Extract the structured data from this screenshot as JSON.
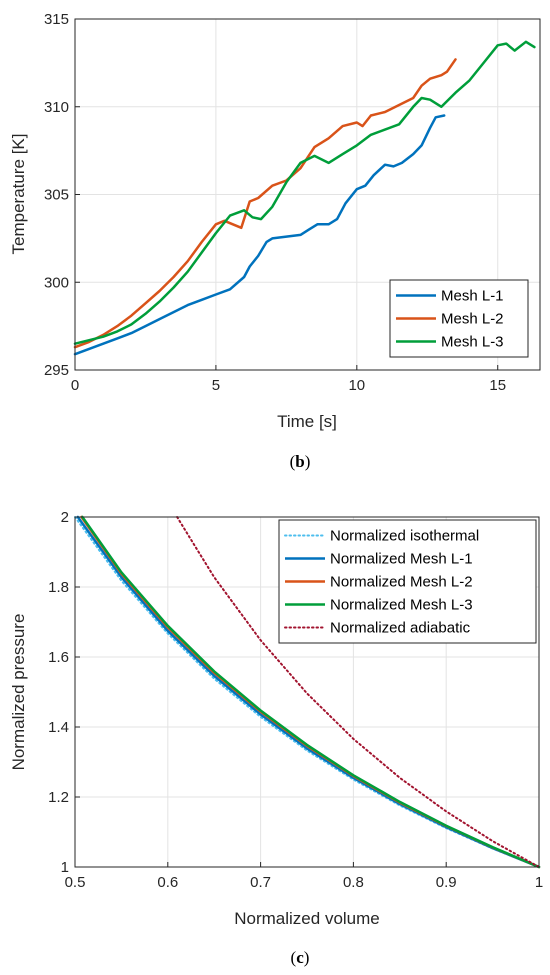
{
  "chart_data": [
    {
      "type": "line",
      "caption_letter": "b",
      "xlabel": "Time [s]",
      "ylabel": "Temperature [K]",
      "xlim": [
        0,
        16.5
      ],
      "ylim": [
        295,
        315
      ],
      "xticks": [
        0,
        5,
        10,
        15
      ],
      "yticks": [
        295,
        300,
        305,
        310,
        315
      ],
      "grid": true,
      "legend_position": "bottom-right",
      "series": [
        {
          "name": "Mesh L-1",
          "color": "#0072BD",
          "style": "solid",
          "points": [
            [
              0,
              295.9
            ],
            [
              0.5,
              296.2
            ],
            [
              1,
              296.5
            ],
            [
              1.5,
              296.8
            ],
            [
              2,
              297.1
            ],
            [
              2.5,
              297.5
            ],
            [
              3,
              297.9
            ],
            [
              3.5,
              298.3
            ],
            [
              4,
              298.7
            ],
            [
              4.5,
              299.0
            ],
            [
              5,
              299.3
            ],
            [
              5.5,
              299.6
            ],
            [
              6,
              300.3
            ],
            [
              6.2,
              300.9
            ],
            [
              6.5,
              301.5
            ],
            [
              6.8,
              302.3
            ],
            [
              7,
              302.5
            ],
            [
              7.5,
              302.6
            ],
            [
              8,
              302.7
            ],
            [
              8.3,
              303.0
            ],
            [
              8.6,
              303.3
            ],
            [
              9,
              303.3
            ],
            [
              9.3,
              303.6
            ],
            [
              9.6,
              304.5
            ],
            [
              10,
              305.3
            ],
            [
              10.3,
              305.5
            ],
            [
              10.6,
              306.1
            ],
            [
              11,
              306.7
            ],
            [
              11.3,
              306.6
            ],
            [
              11.6,
              306.8
            ],
            [
              12,
              307.3
            ],
            [
              12.3,
              307.8
            ],
            [
              12.6,
              308.8
            ],
            [
              12.8,
              309.4
            ],
            [
              13.1,
              309.5
            ]
          ]
        },
        {
          "name": "Mesh L-2",
          "color": "#D95319",
          "style": "solid",
          "points": [
            [
              0,
              296.3
            ],
            [
              0.5,
              296.6
            ],
            [
              1,
              297.0
            ],
            [
              1.5,
              297.5
            ],
            [
              2,
              298.1
            ],
            [
              2.5,
              298.8
            ],
            [
              3,
              299.5
            ],
            [
              3.5,
              300.3
            ],
            [
              4,
              301.2
            ],
            [
              4.5,
              302.3
            ],
            [
              5,
              303.3
            ],
            [
              5.3,
              303.5
            ],
            [
              5.6,
              303.3
            ],
            [
              5.9,
              303.1
            ],
            [
              6.2,
              304.6
            ],
            [
              6.5,
              304.8
            ],
            [
              7,
              305.5
            ],
            [
              7.5,
              305.8
            ],
            [
              8,
              306.5
            ],
            [
              8.5,
              307.7
            ],
            [
              9,
              308.2
            ],
            [
              9.5,
              308.9
            ],
            [
              10,
              309.1
            ],
            [
              10.2,
              308.9
            ],
            [
              10.5,
              309.5
            ],
            [
              11,
              309.7
            ],
            [
              11.5,
              310.1
            ],
            [
              12,
              310.5
            ],
            [
              12.3,
              311.2
            ],
            [
              12.6,
              311.6
            ],
            [
              13,
              311.8
            ],
            [
              13.2,
              312.0
            ],
            [
              13.5,
              312.7
            ]
          ]
        },
        {
          "name": "Mesh L-3",
          "color": "#009E3A",
          "style": "solid",
          "points": [
            [
              0,
              296.5
            ],
            [
              0.5,
              296.7
            ],
            [
              1,
              296.9
            ],
            [
              1.5,
              297.2
            ],
            [
              2,
              297.6
            ],
            [
              2.5,
              298.2
            ],
            [
              3,
              298.9
            ],
            [
              3.5,
              299.7
            ],
            [
              4,
              300.6
            ],
            [
              4.5,
              301.7
            ],
            [
              5,
              302.8
            ],
            [
              5.5,
              303.8
            ],
            [
              6,
              304.1
            ],
            [
              6.3,
              303.7
            ],
            [
              6.6,
              303.6
            ],
            [
              7,
              304.3
            ],
            [
              7.5,
              305.7
            ],
            [
              8,
              306.8
            ],
            [
              8.5,
              307.2
            ],
            [
              9,
              306.8
            ],
            [
              9.5,
              307.3
            ],
            [
              10,
              307.8
            ],
            [
              10.5,
              308.4
            ],
            [
              11,
              308.7
            ],
            [
              11.5,
              309.0
            ],
            [
              12,
              310.0
            ],
            [
              12.3,
              310.5
            ],
            [
              12.6,
              310.4
            ],
            [
              13,
              310.0
            ],
            [
              13.5,
              310.8
            ],
            [
              14,
              311.5
            ],
            [
              14.5,
              312.5
            ],
            [
              15,
              313.5
            ],
            [
              15.3,
              313.6
            ],
            [
              15.6,
              313.2
            ],
            [
              16,
              313.7
            ],
            [
              16.3,
              313.4
            ]
          ]
        }
      ]
    },
    {
      "type": "line",
      "caption_letter": "c",
      "xlabel": "Normalized volume",
      "ylabel": "Normalized pressure",
      "xlim": [
        0.5,
        1
      ],
      "ylim": [
        1,
        2
      ],
      "xticks": [
        0.5,
        0.6,
        0.7,
        0.8,
        0.9,
        1
      ],
      "xtick_labels": [
        "0.5",
        "0.6",
        "0.7",
        "0.8",
        "0.9",
        "1"
      ],
      "yticks": [
        1,
        1.2,
        1.4,
        1.6,
        1.8,
        2
      ],
      "ytick_labels": [
        "1",
        "1.2",
        "1.4",
        "1.6",
        "1.8",
        "2"
      ],
      "grid": true,
      "legend_position": "top-right",
      "series": [
        {
          "name": "Normalized isothermal",
          "color": "#4DBEEE",
          "style": "dotted",
          "points": [
            [
              0.5,
              2.0
            ],
            [
              0.55,
              1.818
            ],
            [
              0.6,
              1.667
            ],
            [
              0.65,
              1.538
            ],
            [
              0.7,
              1.429
            ],
            [
              0.75,
              1.333
            ],
            [
              0.8,
              1.25
            ],
            [
              0.85,
              1.176
            ],
            [
              0.9,
              1.111
            ],
            [
              0.95,
              1.053
            ],
            [
              1.0,
              1.0
            ]
          ]
        },
        {
          "name": "Normalized Mesh L-1",
          "color": "#0072BD",
          "style": "solid",
          "points": [
            [
              0.503,
              2.0
            ],
            [
              0.55,
              1.828
            ],
            [
              0.6,
              1.675
            ],
            [
              0.65,
              1.546
            ],
            [
              0.7,
              1.436
            ],
            [
              0.75,
              1.339
            ],
            [
              0.8,
              1.255
            ],
            [
              0.85,
              1.18
            ],
            [
              0.9,
              1.114
            ],
            [
              0.95,
              1.054
            ],
            [
              1.0,
              1.0
            ]
          ]
        },
        {
          "name": "Normalized Mesh L-2",
          "color": "#D95319",
          "style": "solid",
          "points": [
            [
              0.507,
              2.0
            ],
            [
              0.55,
              1.838
            ],
            [
              0.6,
              1.685
            ],
            [
              0.65,
              1.555
            ],
            [
              0.7,
              1.444
            ],
            [
              0.75,
              1.346
            ],
            [
              0.8,
              1.26
            ],
            [
              0.85,
              1.184
            ],
            [
              0.9,
              1.117
            ],
            [
              0.95,
              1.056
            ],
            [
              1.0,
              1.0
            ]
          ]
        },
        {
          "name": "Normalized Mesh L-3",
          "color": "#009E3A",
          "style": "solid",
          "points": [
            [
              0.508,
              2.0
            ],
            [
              0.55,
              1.842
            ],
            [
              0.6,
              1.689
            ],
            [
              0.65,
              1.559
            ],
            [
              0.7,
              1.447
            ],
            [
              0.75,
              1.349
            ],
            [
              0.8,
              1.262
            ],
            [
              0.85,
              1.186
            ],
            [
              0.9,
              1.118
            ],
            [
              0.95,
              1.057
            ],
            [
              1.0,
              1.0
            ]
          ]
        },
        {
          "name": "Normalized adiabatic",
          "color": "#A2142F",
          "style": "dotted",
          "points": [
            [
              0.61,
              2.0
            ],
            [
              0.63,
              1.914
            ],
            [
              0.65,
              1.828
            ],
            [
              0.7,
              1.648
            ],
            [
              0.75,
              1.496
            ],
            [
              0.8,
              1.366
            ],
            [
              0.85,
              1.255
            ],
            [
              0.9,
              1.159
            ],
            [
              0.95,
              1.074
            ],
            [
              1.0,
              1.0
            ]
          ]
        }
      ]
    }
  ]
}
